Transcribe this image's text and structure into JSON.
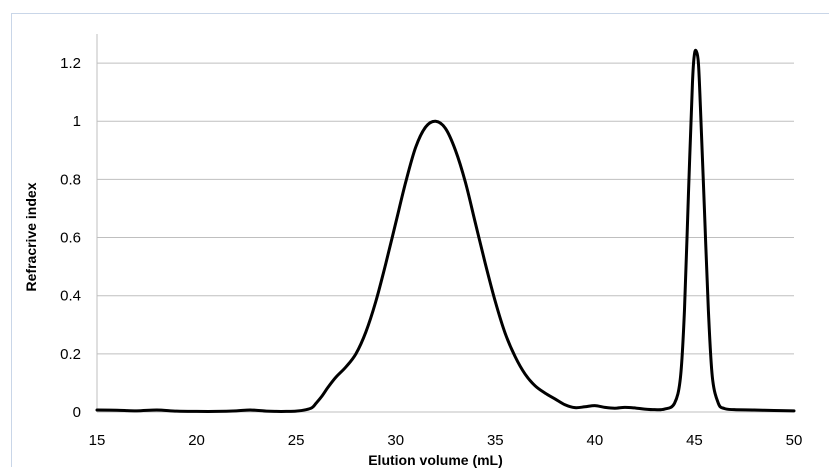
{
  "chart_data": {
    "type": "line",
    "title": "",
    "xlabel": "Elution volume (mL)",
    "ylabel": "Refracrive index",
    "xlim": [
      15,
      50
    ],
    "ylim": [
      0,
      1.3
    ],
    "x_ticks": [
      "15",
      "20",
      "25",
      "30",
      "35",
      "40",
      "45",
      "50"
    ],
    "y_ticks": [
      "0",
      "0.2",
      "0.4",
      "0.6",
      "0.8",
      "1",
      "1.2"
    ],
    "grid": "horizontal",
    "legend": "none",
    "line_color": "#000000",
    "grid_color": "#bfbfbf",
    "series": [
      {
        "x": [
          15,
          16,
          17,
          18,
          19,
          20,
          21,
          22,
          22.7,
          23.5,
          24,
          24.5,
          25,
          25.5,
          25.8,
          26,
          26.3,
          26.6,
          27,
          27.5,
          28,
          28.5,
          29,
          29.5,
          30,
          30.5,
          31,
          31.5,
          32,
          32.5,
          33,
          33.5,
          34,
          34.5,
          35,
          35.5,
          36,
          36.5,
          37,
          37.5,
          38,
          38.5,
          39,
          39.5,
          40,
          40.5,
          41,
          41.5,
          42,
          42.5,
          43,
          43.5,
          44,
          44.3,
          44.5,
          44.7,
          44.9,
          45,
          45.1,
          45.2,
          45.3,
          45.5,
          45.7,
          45.9,
          46.2,
          46.5,
          47,
          48,
          49,
          50
        ],
        "y": [
          0.007,
          0.006,
          0.004,
          0.007,
          0.003,
          0.002,
          0.002,
          0.004,
          0.007,
          0.003,
          0.002,
          0.002,
          0.003,
          0.008,
          0.015,
          0.03,
          0.055,
          0.085,
          0.12,
          0.155,
          0.2,
          0.275,
          0.38,
          0.51,
          0.65,
          0.79,
          0.91,
          0.98,
          1.0,
          0.975,
          0.9,
          0.79,
          0.65,
          0.51,
          0.38,
          0.27,
          0.19,
          0.13,
          0.09,
          0.065,
          0.045,
          0.025,
          0.015,
          0.018,
          0.022,
          0.016,
          0.013,
          0.016,
          0.014,
          0.01,
          0.008,
          0.01,
          0.03,
          0.12,
          0.35,
          0.75,
          1.13,
          1.23,
          1.24,
          1.2,
          1.05,
          0.7,
          0.35,
          0.12,
          0.03,
          0.012,
          0.008,
          0.007,
          0.005,
          0.004
        ]
      }
    ]
  }
}
